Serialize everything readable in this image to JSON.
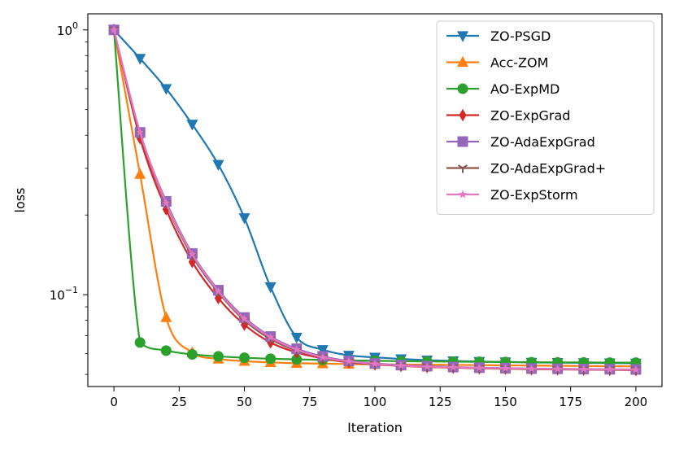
{
  "chart_data": {
    "type": "line",
    "title": "",
    "xlabel": "Iteration",
    "ylabel": "loss",
    "xlim": [
      -10,
      210
    ],
    "ylim": [
      0.045,
      1.15
    ],
    "yscale": "log",
    "xticks": [
      0,
      25,
      50,
      75,
      100,
      125,
      150,
      175,
      200
    ],
    "yticks": [
      {
        "value": 1.0,
        "base": "10",
        "exp": "0"
      },
      {
        "value": 0.1,
        "base": "10",
        "exp": "−1"
      }
    ],
    "legend_position": "top-right",
    "grid": false,
    "series": [
      {
        "name": "ZO-PSGD",
        "color": "#1f77b4",
        "marker": "triangle-down",
        "x": [
          0,
          10,
          20,
          30,
          40,
          50,
          60,
          70,
          80,
          90,
          100,
          110,
          120,
          130,
          140,
          150,
          160,
          170,
          180,
          190,
          200
        ],
        "y": [
          1.0,
          0.78,
          0.6,
          0.44,
          0.31,
          0.195,
          0.107,
          0.069,
          0.062,
          0.059,
          0.058,
          0.0572,
          0.0566,
          0.0562,
          0.0559,
          0.0557,
          0.0555,
          0.0554,
          0.0553,
          0.0552,
          0.0551
        ]
      },
      {
        "name": "Acc-ZOM",
        "color": "#ff7f0e",
        "marker": "triangle-up",
        "x": [
          0,
          10,
          20,
          30,
          40,
          50,
          60,
          70,
          80,
          90,
          100,
          110,
          120,
          130,
          140,
          150,
          160,
          170,
          180,
          190,
          200
        ],
        "y": [
          1.0,
          0.285,
          0.082,
          0.0605,
          0.0572,
          0.0561,
          0.0555,
          0.0551,
          0.0549,
          0.0547,
          0.0546,
          0.0545,
          0.0544,
          0.0543,
          0.0542,
          0.0541,
          0.054,
          0.0539,
          0.0538,
          0.0537,
          0.0536
        ]
      },
      {
        "name": "AO-ExpMD",
        "color": "#2ca02c",
        "marker": "circle",
        "x": [
          0,
          10,
          20,
          30,
          40,
          50,
          60,
          70,
          80,
          90,
          100,
          110,
          120,
          130,
          140,
          150,
          160,
          170,
          180,
          190,
          200
        ],
        "y": [
          1.0,
          0.066,
          0.0615,
          0.0595,
          0.0585,
          0.0578,
          0.0573,
          0.057,
          0.0567,
          0.0565,
          0.0563,
          0.0561,
          0.056,
          0.0559,
          0.0558,
          0.0557,
          0.0556,
          0.0555,
          0.0555,
          0.0554,
          0.0554
        ]
      },
      {
        "name": "ZO-ExpGrad",
        "color": "#d62728",
        "marker": "diamond",
        "x": [
          0,
          10,
          20,
          30,
          40,
          50,
          60,
          70,
          80,
          90,
          100,
          110,
          120,
          130,
          140,
          150,
          160,
          170,
          180,
          190,
          200
        ],
        "y": [
          1.0,
          0.39,
          0.21,
          0.133,
          0.097,
          0.077,
          0.066,
          0.0605,
          0.0575,
          0.0555,
          0.0545,
          0.0538,
          0.0533,
          0.053,
          0.0527,
          0.0525,
          0.0523,
          0.0522,
          0.0521,
          0.052,
          0.0519
        ]
      },
      {
        "name": "ZO-AdaExpGrad",
        "color": "#9467bd",
        "marker": "square",
        "x": [
          0,
          10,
          20,
          30,
          40,
          50,
          60,
          70,
          80,
          90,
          100,
          110,
          120,
          130,
          140,
          150,
          160,
          170,
          180,
          190,
          200
        ],
        "y": [
          1.0,
          0.41,
          0.225,
          0.143,
          0.104,
          0.082,
          0.0695,
          0.0625,
          0.0585,
          0.0562,
          0.055,
          0.0542,
          0.0537,
          0.0533,
          0.053,
          0.0528,
          0.0526,
          0.0525,
          0.0524,
          0.0523,
          0.0522
        ]
      },
      {
        "name": "ZO-AdaExpGrad+",
        "color": "#8c564b",
        "marker": "tri-down",
        "x": [
          0,
          10,
          20,
          30,
          40,
          50,
          60,
          70,
          80,
          90,
          100,
          110,
          120,
          130,
          140,
          150,
          160,
          170,
          180,
          190,
          200
        ],
        "y": [
          1.0,
          0.405,
          0.22,
          0.14,
          0.102,
          0.08,
          0.068,
          0.0615,
          0.058,
          0.0558,
          0.0547,
          0.054,
          0.0535,
          0.0531,
          0.0528,
          0.0526,
          0.0524,
          0.0523,
          0.0522,
          0.0521,
          0.052
        ]
      },
      {
        "name": "ZO-ExpStorm",
        "color": "#e377c2",
        "marker": "star",
        "x": [
          0,
          10,
          20,
          30,
          40,
          50,
          60,
          70,
          80,
          90,
          100,
          110,
          120,
          130,
          140,
          150,
          160,
          170,
          180,
          190,
          200
        ],
        "y": [
          1.0,
          0.41,
          0.222,
          0.142,
          0.103,
          0.081,
          0.069,
          0.062,
          0.058,
          0.056,
          0.0548,
          0.054,
          0.0535,
          0.0532,
          0.0529,
          0.0527,
          0.0525,
          0.0524,
          0.0523,
          0.0522,
          0.0521
        ]
      }
    ]
  }
}
